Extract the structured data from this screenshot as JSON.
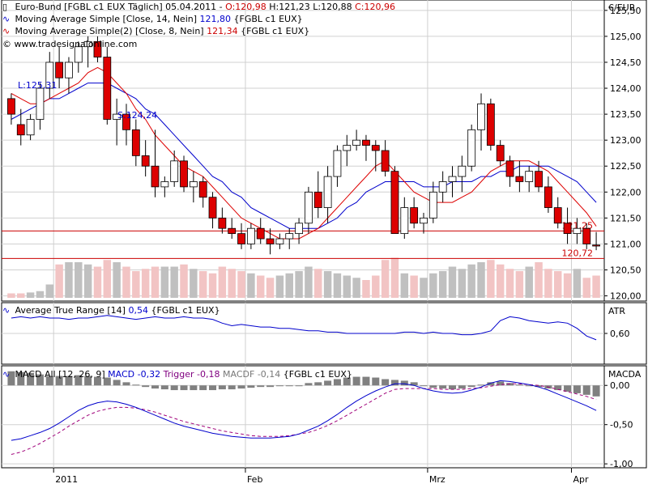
{
  "chart_data": [
    {
      "type": "candlestick",
      "panel": "price",
      "header": {
        "instrument": "Euro-Bund [FGBL c1 EUX  Täglich] 05.04.2011",
        "ohlc": {
          "O": "O:120,98",
          "H": "H:121,23",
          "L": "L:120,88",
          "C": "C:120,96"
        },
        "sma14_label": "Moving Average Simple [Close, 14, Nein]",
        "sma14_value": "121,80",
        "sma8_label": "Moving Average Simple(2) [Close, 8, Nein]",
        "sma8_value": "121,34",
        "feed": "{FGBL c1 EUX}",
        "copyright": "© www.tradesignalonline.com"
      },
      "unit_label": "€/EUR",
      "yticks": [
        "125,50",
        "125,00",
        "124,50",
        "124,00",
        "123,50",
        "123,00",
        "122,50",
        "122,00",
        "121,50",
        "121,00",
        "120,50",
        "120,00"
      ],
      "ylim": [
        119.9,
        125.7
      ],
      "hlines": [
        {
          "value": 121.25,
          "label": "121,25",
          "color": "#cc0000"
        },
        {
          "value": 120.72,
          "label": "120,72",
          "color": "#cc0000"
        }
      ],
      "annotations": [
        {
          "text": "L:125,31",
          "color": "#0000cc"
        },
        {
          "text": "S:124,24",
          "color": "#0000cc"
        }
      ],
      "candles": [
        [
          123.8,
          123.9,
          123.3,
          123.5
        ],
        [
          123.3,
          123.6,
          122.9,
          123.1
        ],
        [
          123.1,
          123.5,
          123.0,
          123.4
        ],
        [
          123.4,
          124.1,
          123.2,
          124.0
        ],
        [
          124.0,
          124.7,
          123.8,
          124.5
        ],
        [
          124.5,
          124.8,
          124.0,
          124.2
        ],
        [
          124.2,
          124.6,
          123.9,
          124.5
        ],
        [
          124.5,
          124.9,
          124.3,
          124.8
        ],
        [
          124.8,
          125.0,
          124.4,
          124.9
        ],
        [
          124.9,
          125.0,
          124.5,
          124.6
        ],
        [
          124.6,
          124.8,
          123.3,
          123.4
        ],
        [
          123.4,
          123.8,
          122.9,
          123.5
        ],
        [
          123.5,
          123.7,
          122.9,
          123.2
        ],
        [
          123.2,
          123.4,
          122.5,
          122.7
        ],
        [
          122.7,
          123.0,
          122.3,
          122.5
        ],
        [
          122.5,
          123.2,
          121.9,
          122.1
        ],
        [
          122.1,
          122.3,
          121.9,
          122.2
        ],
        [
          122.2,
          122.8,
          122.1,
          122.6
        ],
        [
          122.6,
          122.7,
          122.0,
          122.1
        ],
        [
          122.1,
          122.4,
          121.8,
          122.2
        ],
        [
          122.2,
          122.3,
          121.7,
          121.9
        ],
        [
          121.9,
          122.0,
          121.3,
          121.5
        ],
        [
          121.5,
          121.7,
          121.2,
          121.3
        ],
        [
          121.3,
          121.5,
          121.1,
          121.2
        ],
        [
          121.2,
          121.4,
          120.9,
          121.0
        ],
        [
          121.0,
          121.4,
          120.9,
          121.3
        ],
        [
          121.3,
          121.5,
          121.0,
          121.1
        ],
        [
          121.1,
          121.3,
          120.8,
          121.0
        ],
        [
          121.0,
          121.2,
          120.9,
          121.1
        ],
        [
          121.1,
          121.3,
          120.9,
          121.2
        ],
        [
          121.2,
          121.5,
          121.0,
          121.4
        ],
        [
          121.4,
          122.1,
          121.2,
          122.0
        ],
        [
          122.0,
          122.4,
          121.5,
          121.7
        ],
        [
          121.7,
          122.5,
          121.4,
          122.3
        ],
        [
          122.3,
          122.9,
          122.1,
          122.8
        ],
        [
          122.8,
          123.1,
          122.5,
          122.9
        ],
        [
          122.9,
          123.2,
          122.8,
          123.0
        ],
        [
          123.0,
          123.1,
          122.6,
          122.9
        ],
        [
          122.9,
          123.0,
          122.4,
          122.8
        ],
        [
          122.8,
          123.0,
          122.3,
          122.4
        ],
        [
          122.4,
          122.5,
          121.2,
          121.2
        ],
        [
          121.2,
          121.9,
          121.1,
          121.7
        ],
        [
          121.7,
          121.9,
          121.3,
          121.4
        ],
        [
          121.4,
          121.6,
          121.2,
          121.5
        ],
        [
          121.5,
          122.2,
          121.4,
          122.0
        ],
        [
          122.0,
          122.4,
          121.8,
          122.2
        ],
        [
          122.2,
          122.5,
          121.9,
          122.3
        ],
        [
          122.3,
          122.7,
          122.0,
          122.5
        ],
        [
          122.5,
          123.3,
          122.4,
          123.2
        ],
        [
          123.2,
          123.9,
          122.8,
          123.7
        ],
        [
          123.7,
          123.8,
          122.8,
          122.9
        ],
        [
          122.9,
          123.0,
          122.5,
          122.6
        ],
        [
          122.6,
          122.7,
          122.1,
          122.3
        ],
        [
          122.3,
          122.6,
          122.0,
          122.2
        ],
        [
          122.2,
          122.5,
          122.0,
          122.4
        ],
        [
          122.4,
          122.6,
          122.0,
          122.1
        ],
        [
          122.1,
          122.3,
          121.6,
          121.7
        ],
        [
          121.7,
          121.9,
          121.3,
          121.4
        ],
        [
          121.4,
          121.7,
          121.0,
          121.2
        ],
        [
          121.2,
          121.5,
          121.0,
          121.3
        ],
        [
          121.3,
          121.4,
          120.9,
          121.0
        ],
        [
          120.98,
          121.23,
          120.88,
          120.96
        ]
      ],
      "sma8": [
        123.9,
        123.8,
        123.7,
        123.7,
        123.8,
        123.9,
        124.0,
        124.1,
        124.3,
        124.4,
        124.3,
        124.1,
        123.9,
        123.6,
        123.4,
        123.1,
        122.9,
        122.7,
        122.5,
        122.4,
        122.3,
        122.1,
        121.9,
        121.7,
        121.5,
        121.4,
        121.3,
        121.2,
        121.1,
        121.1,
        121.1,
        121.2,
        121.3,
        121.5,
        121.7,
        121.9,
        122.1,
        122.3,
        122.5,
        122.6,
        122.4,
        122.2,
        122.0,
        121.9,
        121.8,
        121.8,
        121.8,
        121.9,
        122.0,
        122.2,
        122.4,
        122.5,
        122.6,
        122.6,
        122.6,
        122.5,
        122.4,
        122.2,
        122.0,
        121.8,
        121.6,
        121.34
      ],
      "sma14": [
        123.4,
        123.5,
        123.6,
        123.7,
        123.8,
        123.8,
        123.9,
        124.0,
        124.1,
        124.1,
        124.1,
        124.0,
        123.9,
        123.8,
        123.6,
        123.5,
        123.3,
        123.1,
        122.9,
        122.7,
        122.5,
        122.3,
        122.2,
        122.0,
        121.9,
        121.7,
        121.6,
        121.5,
        121.4,
        121.3,
        121.3,
        121.3,
        121.3,
        121.4,
        121.5,
        121.7,
        121.8,
        122.0,
        122.1,
        122.2,
        122.2,
        122.2,
        122.2,
        122.1,
        122.1,
        122.1,
        122.2,
        122.2,
        122.2,
        122.3,
        122.3,
        122.4,
        122.4,
        122.5,
        122.5,
        122.5,
        122.5,
        122.4,
        122.3,
        122.2,
        122.0,
        121.8
      ],
      "volume": [
        0.1,
        0.1,
        0.12,
        0.15,
        0.3,
        0.75,
        0.8,
        0.8,
        0.75,
        0.7,
        0.85,
        0.8,
        0.7,
        0.6,
        0.65,
        0.7,
        0.7,
        0.7,
        0.75,
        0.65,
        0.6,
        0.55,
        0.7,
        0.65,
        0.6,
        0.55,
        0.5,
        0.45,
        0.5,
        0.55,
        0.6,
        0.7,
        0.65,
        0.6,
        0.55,
        0.5,
        0.45,
        0.4,
        0.5,
        0.85,
        0.9,
        0.55,
        0.5,
        0.45,
        0.55,
        0.6,
        0.7,
        0.65,
        0.75,
        0.8,
        0.85,
        0.75,
        0.65,
        0.6,
        0.7,
        0.8,
        0.65,
        0.6,
        0.55,
        0.65,
        0.45,
        0.5
      ],
      "xticks": [
        {
          "label": "2011",
          "index": 5
        },
        {
          "label": "Feb",
          "index": 25
        },
        {
          "label": "Mrz",
          "index": 44
        },
        {
          "label": "Apr",
          "index": 59
        }
      ]
    },
    {
      "type": "line",
      "panel": "atr",
      "header": {
        "label": "Average True Range [14]",
        "value": "0,54",
        "feed": "{FGBL c1 EUX}"
      },
      "unit_label": "ATR",
      "yticks": [
        "0,60"
      ],
      "ylim": [
        0.48,
        0.72
      ],
      "values": [
        0.66,
        0.665,
        0.66,
        0.665,
        0.66,
        0.66,
        0.655,
        0.66,
        0.66,
        0.665,
        0.67,
        0.665,
        0.66,
        0.655,
        0.66,
        0.665,
        0.66,
        0.66,
        0.665,
        0.66,
        0.66,
        0.655,
        0.64,
        0.63,
        0.635,
        0.63,
        0.625,
        0.625,
        0.62,
        0.62,
        0.615,
        0.61,
        0.61,
        0.605,
        0.605,
        0.6,
        0.6,
        0.6,
        0.6,
        0.6,
        0.6,
        0.605,
        0.605,
        0.6,
        0.605,
        0.6,
        0.6,
        0.595,
        0.595,
        0.6,
        0.61,
        0.65,
        0.665,
        0.66,
        0.65,
        0.645,
        0.64,
        0.645,
        0.64,
        0.62,
        0.59,
        0.575
      ]
    },
    {
      "type": "line+bar",
      "panel": "macd",
      "header": {
        "label": "MACD All [12, 26, 9]",
        "macd": "MACD -0,32",
        "trigger": "Trigger -0,18",
        "macdf": "MACDF -0,14",
        "feed": "{FGBL c1 EUX}"
      },
      "unit_label": "MACDA",
      "yticks": [
        "0,00",
        "-0,50",
        "-1,00"
      ],
      "ylim": [
        -1.05,
        0.25
      ],
      "macd": [
        -0.7,
        -0.68,
        -0.64,
        -0.6,
        -0.55,
        -0.48,
        -0.4,
        -0.32,
        -0.26,
        -0.22,
        -0.2,
        -0.21,
        -0.24,
        -0.28,
        -0.33,
        -0.38,
        -0.43,
        -0.48,
        -0.52,
        -0.55,
        -0.58,
        -0.61,
        -0.63,
        -0.65,
        -0.66,
        -0.67,
        -0.67,
        -0.67,
        -0.66,
        -0.65,
        -0.62,
        -0.57,
        -0.52,
        -0.45,
        -0.37,
        -0.28,
        -0.2,
        -0.13,
        -0.07,
        -0.02,
        0.02,
        0.02,
        0.0,
        -0.04,
        -0.07,
        -0.09,
        -0.1,
        -0.09,
        -0.06,
        -0.02,
        0.03,
        0.06,
        0.05,
        0.03,
        0.01,
        -0.02,
        -0.06,
        -0.11,
        -0.16,
        -0.21,
        -0.26,
        -0.32
      ],
      "trigger": [
        -0.88,
        -0.85,
        -0.8,
        -0.74,
        -0.67,
        -0.6,
        -0.52,
        -0.45,
        -0.38,
        -0.33,
        -0.3,
        -0.28,
        -0.28,
        -0.29,
        -0.31,
        -0.34,
        -0.38,
        -0.42,
        -0.46,
        -0.49,
        -0.52,
        -0.55,
        -0.58,
        -0.6,
        -0.62,
        -0.64,
        -0.65,
        -0.65,
        -0.65,
        -0.64,
        -0.62,
        -0.6,
        -0.56,
        -0.51,
        -0.45,
        -0.38,
        -0.31,
        -0.24,
        -0.17,
        -0.1,
        -0.05,
        -0.04,
        -0.04,
        -0.04,
        -0.04,
        -0.05,
        -0.05,
        -0.05,
        -0.04,
        -0.03,
        -0.01,
        0.01,
        0.02,
        0.02,
        0.01,
        0.0,
        -0.02,
        -0.05,
        -0.08,
        -0.11,
        -0.14,
        -0.18
      ],
      "histogram": [
        0.18,
        0.17,
        0.16,
        0.14,
        0.12,
        0.12,
        0.12,
        0.13,
        0.12,
        0.11,
        0.1,
        0.07,
        0.04,
        0.01,
        -0.02,
        -0.04,
        -0.05,
        -0.06,
        -0.06,
        -0.06,
        -0.06,
        -0.06,
        -0.05,
        -0.05,
        -0.04,
        -0.03,
        -0.02,
        -0.02,
        -0.01,
        -0.01,
        0.0,
        0.03,
        0.04,
        0.06,
        0.08,
        0.1,
        0.11,
        0.11,
        0.1,
        0.08,
        0.07,
        0.06,
        0.04,
        0.0,
        -0.03,
        -0.04,
        -0.05,
        -0.04,
        -0.02,
        0.01,
        0.04,
        0.05,
        0.03,
        0.01,
        0.0,
        -0.02,
        -0.04,
        -0.06,
        -0.08,
        -0.1,
        -0.12,
        -0.14
      ]
    }
  ]
}
